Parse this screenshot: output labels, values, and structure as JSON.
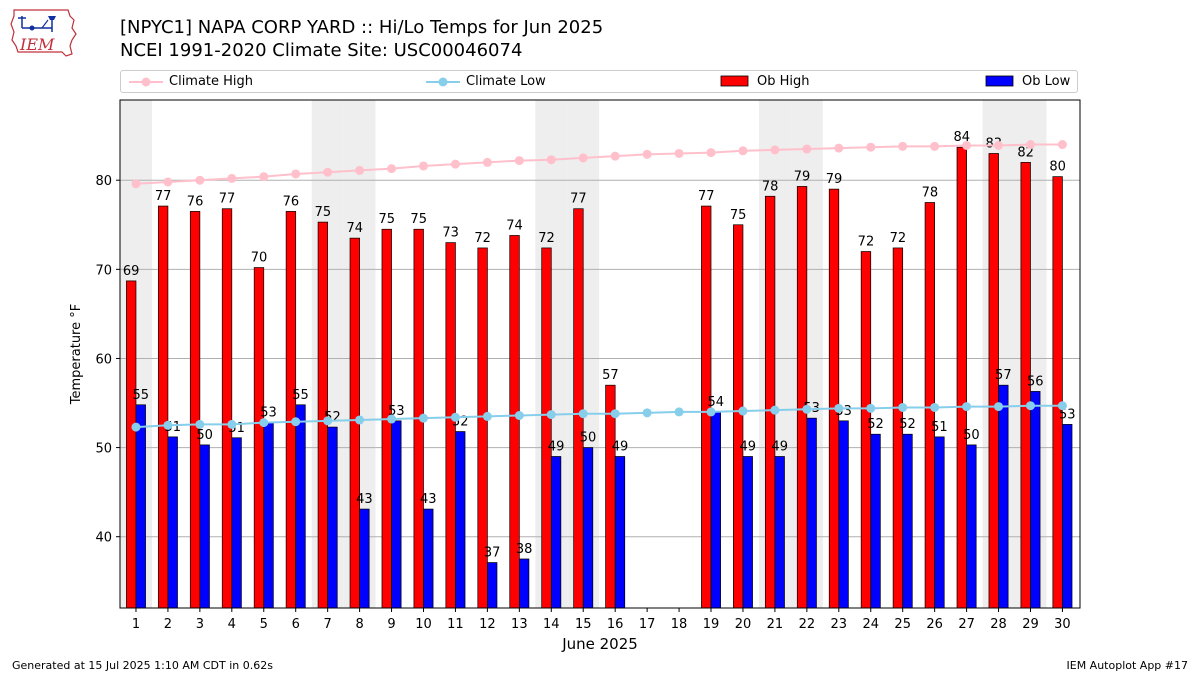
{
  "header": {
    "logo_text": "IEM",
    "title": "[NPYC1] NAPA CORP YARD :: Hi/Lo Temps for Jun 2025",
    "subtitle": "NCEI 1991-2020 Climate Site: USC00046074"
  },
  "legend": {
    "climate_high": "Climate High",
    "climate_low": "Climate Low",
    "ob_high": "Ob High",
    "ob_low": "Ob Low"
  },
  "colors": {
    "climate_high": "#ffc0cb",
    "climate_low": "#87ceeb",
    "ob_high": "#ff0000",
    "ob_low": "#0000ff",
    "weekend_shade": "#eeeeee",
    "grid": "#b0b0b0"
  },
  "footer": {
    "generated": "Generated at 15 Jul 2025 1:10 AM CDT in 0.62s",
    "app": "IEM Autoplot App #17"
  },
  "chart_data": {
    "type": "bar",
    "xlabel": "June 2025",
    "ylabel": "Temperature °F",
    "ylim": [
      32,
      89
    ],
    "yticks": [
      40,
      50,
      60,
      70,
      80
    ],
    "grid": true,
    "legend_position": "top",
    "categories": [
      "1",
      "2",
      "3",
      "4",
      "5",
      "6",
      "7",
      "8",
      "9",
      "10",
      "11",
      "12",
      "13",
      "14",
      "15",
      "16",
      "17",
      "18",
      "19",
      "20",
      "21",
      "22",
      "23",
      "24",
      "25",
      "26",
      "27",
      "28",
      "29",
      "30"
    ],
    "shaded_days": [
      1,
      7,
      8,
      14,
      15,
      21,
      22,
      28,
      29
    ],
    "series": [
      {
        "name": "Ob High",
        "kind": "bar",
        "values": [
          68.7,
          77.1,
          76.5,
          76.8,
          70.2,
          76.5,
          75.3,
          73.5,
          74.5,
          74.5,
          73.0,
          72.4,
          73.8,
          72.4,
          76.8,
          57.0,
          null,
          null,
          77.1,
          75.0,
          78.2,
          79.3,
          79.0,
          72.0,
          72.4,
          77.5,
          83.7,
          83.0,
          82.0,
          80.4
        ],
        "labels": [
          "69",
          "77",
          "76",
          "77",
          "70",
          "76",
          "75",
          "74",
          "75",
          "75",
          "73",
          "72",
          "74",
          "72",
          "77",
          "57",
          "",
          "",
          "77",
          "75",
          "78",
          "79",
          "79",
          "72",
          "72",
          "78",
          "84",
          "83",
          "82",
          "80"
        ]
      },
      {
        "name": "Ob Low",
        "kind": "bar",
        "values": [
          54.8,
          51.2,
          50.3,
          51.1,
          52.8,
          54.8,
          52.3,
          43.1,
          53.0,
          43.1,
          51.8,
          37.1,
          37.5,
          49.0,
          50.0,
          49.0,
          null,
          null,
          54.0,
          49.0,
          49.0,
          53.3,
          53.0,
          51.5,
          51.5,
          51.2,
          50.3,
          57.0,
          56.3,
          52.6
        ],
        "labels": [
          "55",
          "51",
          "50",
          "51",
          "53",
          "55",
          "52",
          "43",
          "53",
          "43",
          "52",
          "37",
          "38",
          "49",
          "50",
          "49",
          "",
          "",
          "54",
          "49",
          "49",
          "53",
          "53",
          "52",
          "52",
          "51",
          "50",
          "57",
          "56",
          "53"
        ]
      },
      {
        "name": "Climate High",
        "kind": "line",
        "values": [
          79.6,
          79.8,
          80.0,
          80.2,
          80.4,
          80.7,
          80.9,
          81.1,
          81.3,
          81.6,
          81.8,
          82.0,
          82.2,
          82.3,
          82.5,
          82.7,
          82.9,
          83.0,
          83.1,
          83.3,
          83.4,
          83.5,
          83.6,
          83.7,
          83.8,
          83.8,
          83.9,
          83.9,
          84.0,
          84.0
        ]
      },
      {
        "name": "Climate Low",
        "kind": "line",
        "values": [
          52.3,
          52.5,
          52.6,
          52.6,
          52.8,
          52.9,
          53.0,
          53.1,
          53.2,
          53.3,
          53.4,
          53.5,
          53.6,
          53.7,
          53.8,
          53.8,
          53.9,
          54.0,
          54.0,
          54.1,
          54.2,
          54.3,
          54.4,
          54.4,
          54.5,
          54.5,
          54.6,
          54.6,
          54.7,
          54.7
        ]
      }
    ]
  }
}
